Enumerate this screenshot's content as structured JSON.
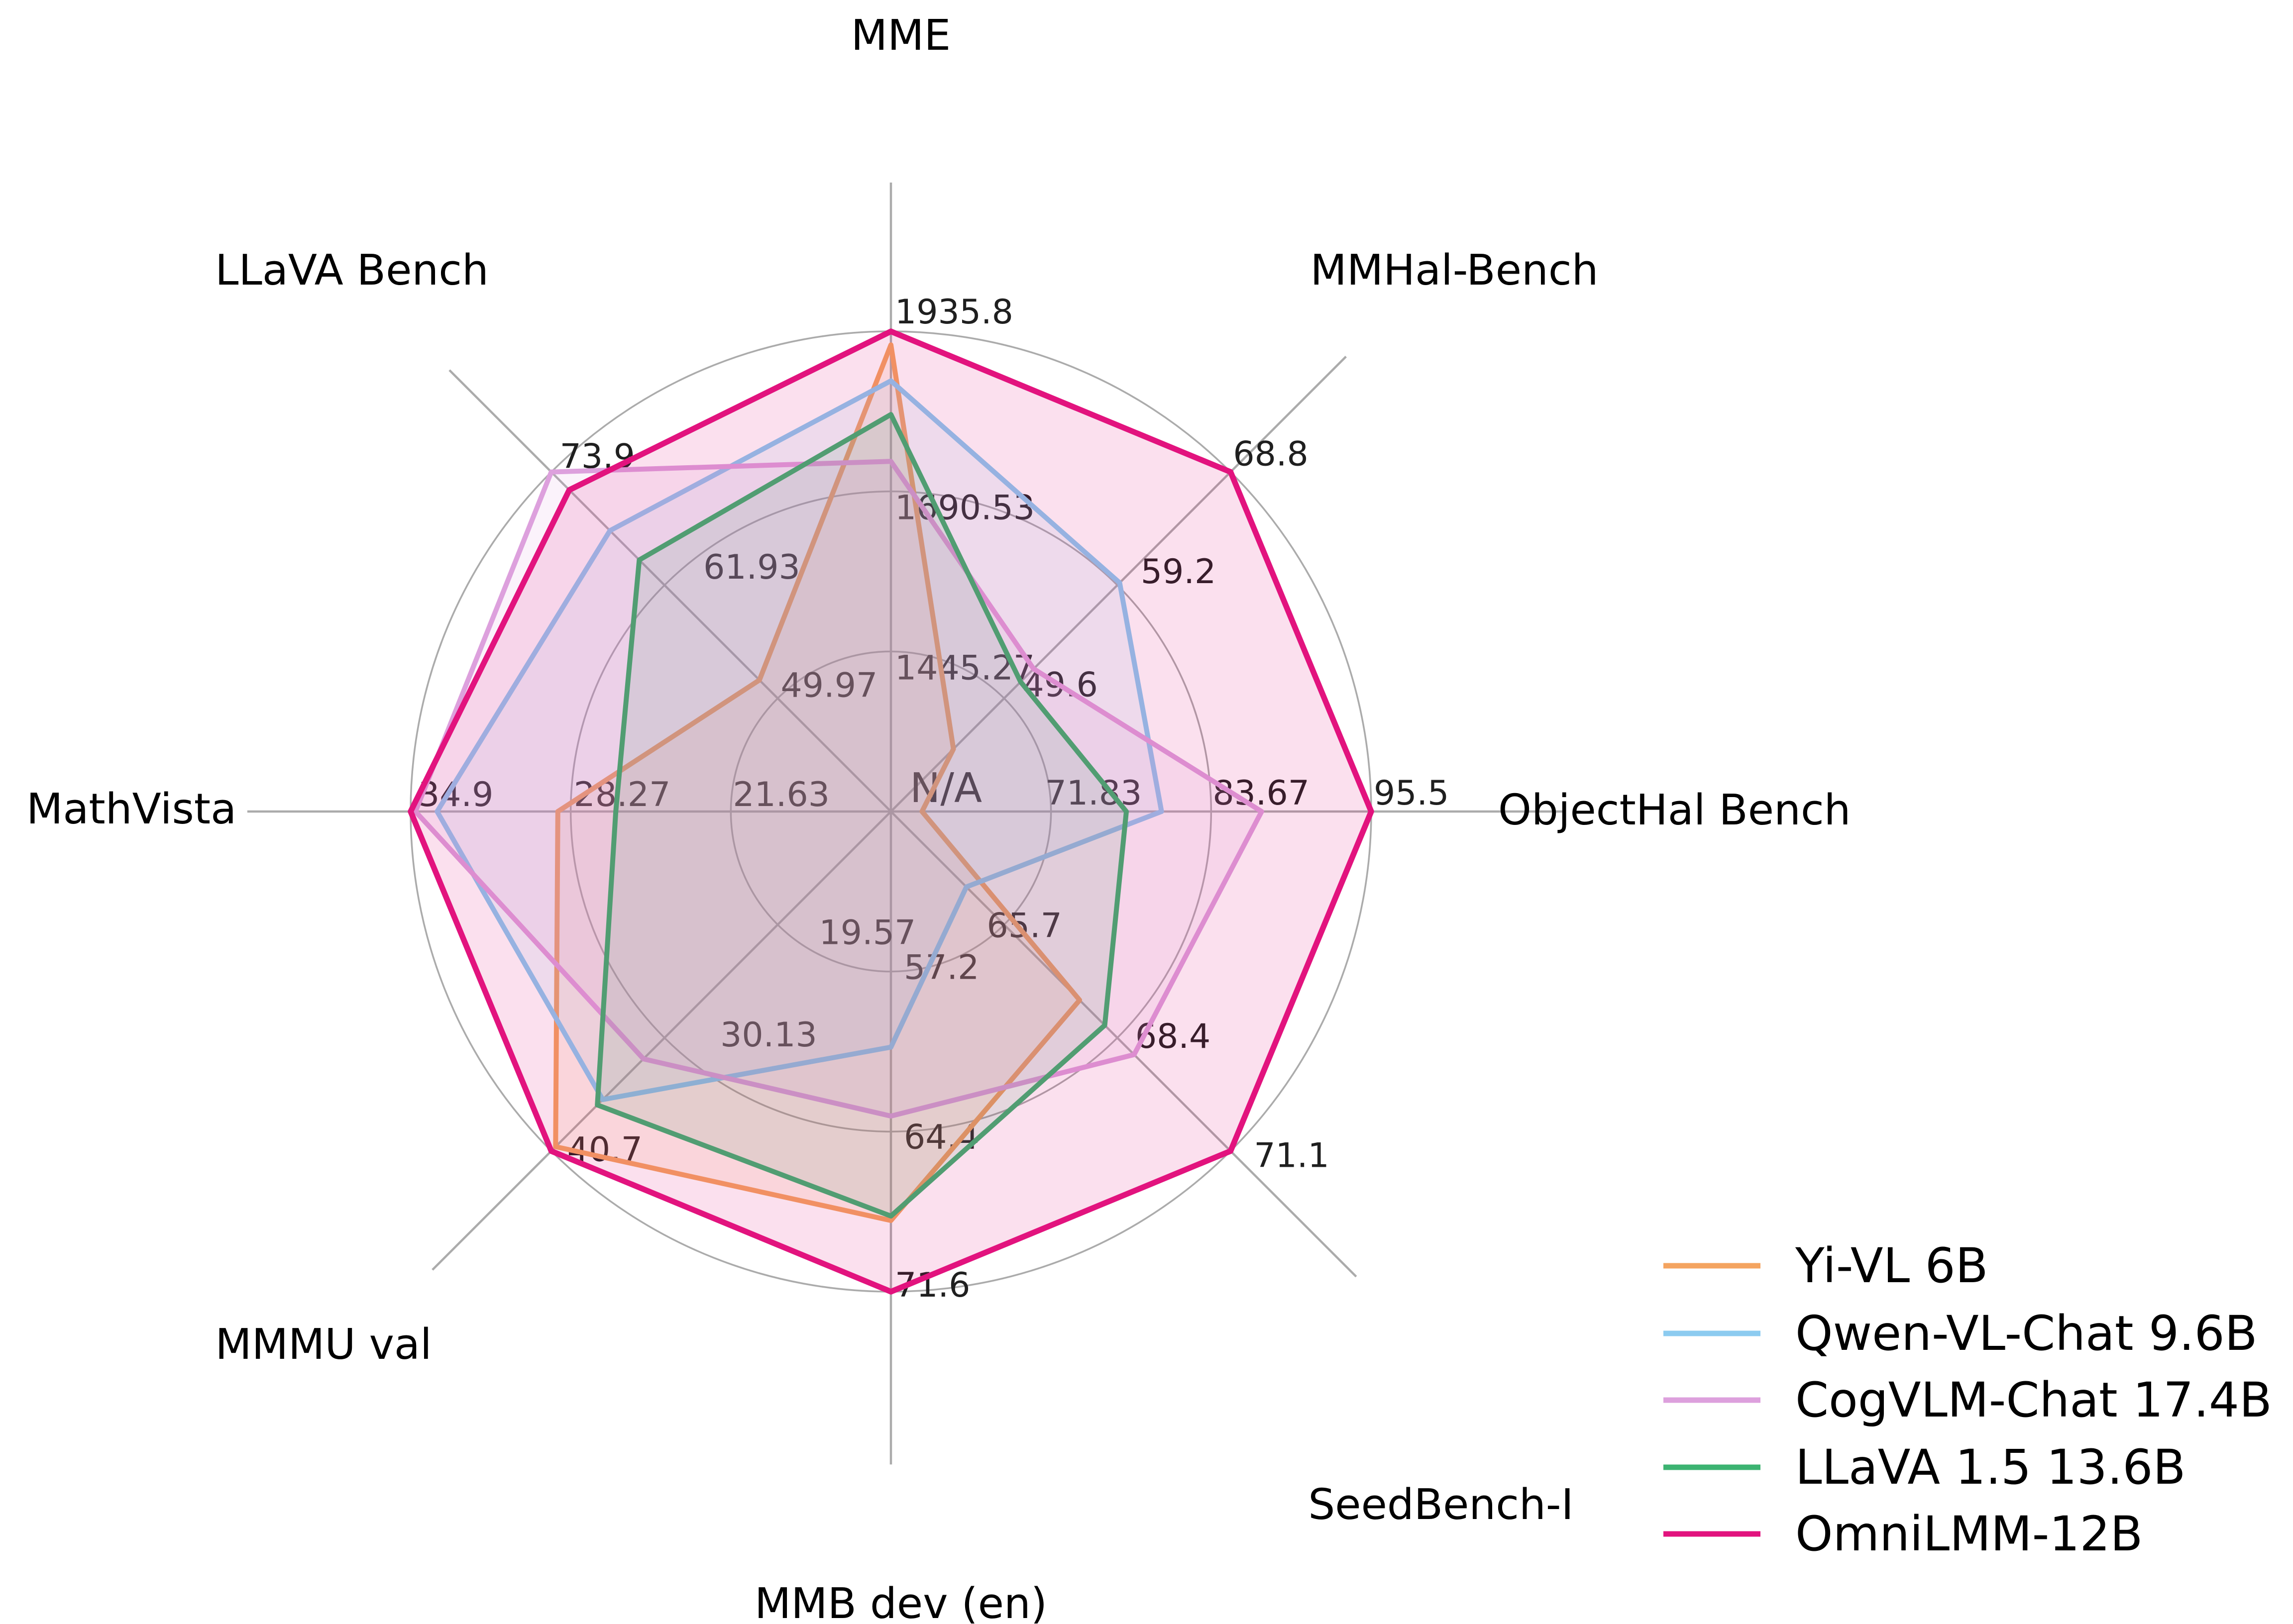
{
  "chart_data": {
    "type": "radar",
    "center_label": "N/A",
    "grid_color": "#ABABAB",
    "background": "#FFFFFF",
    "legend_position": "lower right",
    "axes": [
      {
        "label": "MME",
        "ticks": [
          "1935.8",
          "1690.53",
          "1445.27"
        ],
        "tick_values": [
          1935.8,
          1690.53,
          1445.27
        ],
        "axis_min": 1200,
        "axis_max": 1935.8
      },
      {
        "label": "MMHal-Bench",
        "ticks": [
          "68.8",
          "59.2",
          "49.6"
        ],
        "tick_values": [
          68.8,
          59.2,
          49.6
        ],
        "axis_min": 40,
        "axis_max": 68.8
      },
      {
        "label": "ObjectHal Bench",
        "ticks": [
          "95.5",
          "83.67",
          "71.83"
        ],
        "tick_values": [
          95.5,
          83.67,
          71.83
        ],
        "axis_min": 60,
        "axis_max": 95.5
      },
      {
        "label": "SeedBench-I",
        "ticks": [
          "71.1",
          "68.4",
          "65.7"
        ],
        "tick_values": [
          71.1,
          68.4,
          65.7
        ],
        "axis_min": 63,
        "axis_max": 71.1
      },
      {
        "label": "MMB dev (en)",
        "ticks": [
          "71.6",
          "64.4",
          "57.2"
        ],
        "tick_values": [
          71.6,
          64.4,
          57.2
        ],
        "axis_min": 50,
        "axis_max": 71.6
      },
      {
        "label": "MMMU val",
        "ticks": [
          "40.7",
          "30.13",
          "19.57"
        ],
        "tick_values": [
          40.7,
          30.13,
          19.57
        ],
        "axis_min": 9,
        "axis_max": 40.7
      },
      {
        "label": "MathVista",
        "ticks": [
          "34.9",
          "28.27",
          "21.63"
        ],
        "tick_values": [
          34.9,
          28.27,
          21.63
        ],
        "axis_min": 15,
        "axis_max": 34.9
      },
      {
        "label": "LLaVA Bench",
        "ticks": [
          "73.9",
          "61.93",
          "49.97"
        ],
        "tick_values": [
          73.9,
          61.93,
          49.97
        ],
        "axis_min": 38,
        "axis_max": 73.9
      }
    ],
    "series": [
      {
        "name": "Yi-VL 6B",
        "color": "#F4A460",
        "values": [
          1915.1,
          45.3,
          62.3,
          67.5,
          68.4,
          40.3,
          28.8,
          51.9
        ]
      },
      {
        "name": "Qwen-VL-Chat 9.6B",
        "color": "#8CCBF0",
        "values": [
          1860.0,
          59.4,
          80.0,
          64.8,
          60.6,
          35.9,
          33.8,
          67.7
        ]
      },
      {
        "name": "CogVLM-Chat 17.4B",
        "color": "#DDA0DD",
        "values": [
          1736.6,
          52.1,
          87.4,
          68.8,
          63.7,
          32.1,
          34.7,
          73.9
        ]
      },
      {
        "name": "LLaVA 1.5 13.6B",
        "color": "#3CB371",
        "values": [
          1808.4,
          51.0,
          77.4,
          68.1,
          68.2,
          36.4,
          26.4,
          64.6
        ]
      },
      {
        "name": "OmniLMM-12B",
        "color": "#E2137E",
        "values": [
          1935.8,
          68.8,
          95.5,
          71.1,
          71.6,
          40.7,
          34.9,
          72.0
        ]
      }
    ]
  }
}
